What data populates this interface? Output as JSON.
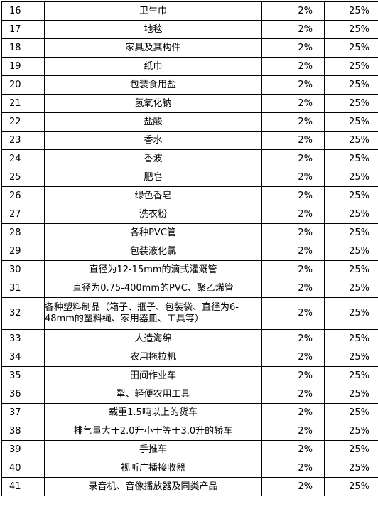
{
  "rows": [
    {
      "no": "16",
      "name": "卫生巾",
      "rate_a": "2%",
      "rate_b": "25%"
    },
    {
      "no": "17",
      "name": "地毯",
      "rate_a": "2%",
      "rate_b": "25%"
    },
    {
      "no": "18",
      "name": "家具及其构件",
      "rate_a": "2%",
      "rate_b": "25%"
    },
    {
      "no": "19",
      "name": "纸巾",
      "rate_a": "2%",
      "rate_b": "25%"
    },
    {
      "no": "20",
      "name": "包装食用盐",
      "rate_a": "2%",
      "rate_b": "25%"
    },
    {
      "no": "21",
      "name": "氢氧化钠",
      "rate_a": "2%",
      "rate_b": "25%"
    },
    {
      "no": "22",
      "name": "盐酸",
      "rate_a": "2%",
      "rate_b": "25%"
    },
    {
      "no": "23",
      "name": "香水",
      "rate_a": "2%",
      "rate_b": "25%"
    },
    {
      "no": "24",
      "name": "香波",
      "rate_a": "2%",
      "rate_b": "25%"
    },
    {
      "no": "25",
      "name": "肥皂",
      "rate_a": "2%",
      "rate_b": "25%"
    },
    {
      "no": "26",
      "name": "绿色香皂",
      "rate_a": "2%",
      "rate_b": "25%"
    },
    {
      "no": "27",
      "name": "洗衣粉",
      "rate_a": "2%",
      "rate_b": "25%"
    },
    {
      "no": "28",
      "name": "各种PVC管",
      "rate_a": "2%",
      "rate_b": "25%"
    },
    {
      "no": "29",
      "name": "包装液化氯",
      "rate_a": "2%",
      "rate_b": "25%"
    },
    {
      "no": "30",
      "name": "直径为12-15mm的滴式灌溉管",
      "rate_a": "2%",
      "rate_b": "25%"
    },
    {
      "no": "31",
      "name": "直径为0.75-400mm的PVC、聚乙烯管",
      "rate_a": "2%",
      "rate_b": "25%"
    },
    {
      "no": "32",
      "name": "各种塑料制品（箱子、瓶子、包装袋、直径为6-48mm的塑料绳、家用器皿、工具等）",
      "rate_a": "2%",
      "rate_b": "25%"
    },
    {
      "no": "33",
      "name": "人造海绵",
      "rate_a": "2%",
      "rate_b": "25%"
    },
    {
      "no": "34",
      "name": "农用拖拉机",
      "rate_a": "2%",
      "rate_b": "25%"
    },
    {
      "no": "35",
      "name": "田间作业车",
      "rate_a": "2%",
      "rate_b": "25%"
    },
    {
      "no": "36",
      "name": "犁、轻便农用工具",
      "rate_a": "2%",
      "rate_b": "25%"
    },
    {
      "no": "37",
      "name": "载重1.5吨以上的货车",
      "rate_a": "2%",
      "rate_b": "25%"
    },
    {
      "no": "38",
      "name": "排气量大于2.0升小于等于3.0升的轿车",
      "rate_a": "2%",
      "rate_b": "25%"
    },
    {
      "no": "39",
      "name": "手推车",
      "rate_a": "2%",
      "rate_b": "25%"
    },
    {
      "no": "40",
      "name": "视听广播接收器",
      "rate_a": "2%",
      "rate_b": "25%"
    },
    {
      "no": "41",
      "name": "录音机、音像播放器及同类产品",
      "rate_a": "2%",
      "rate_b": "25%"
    }
  ]
}
